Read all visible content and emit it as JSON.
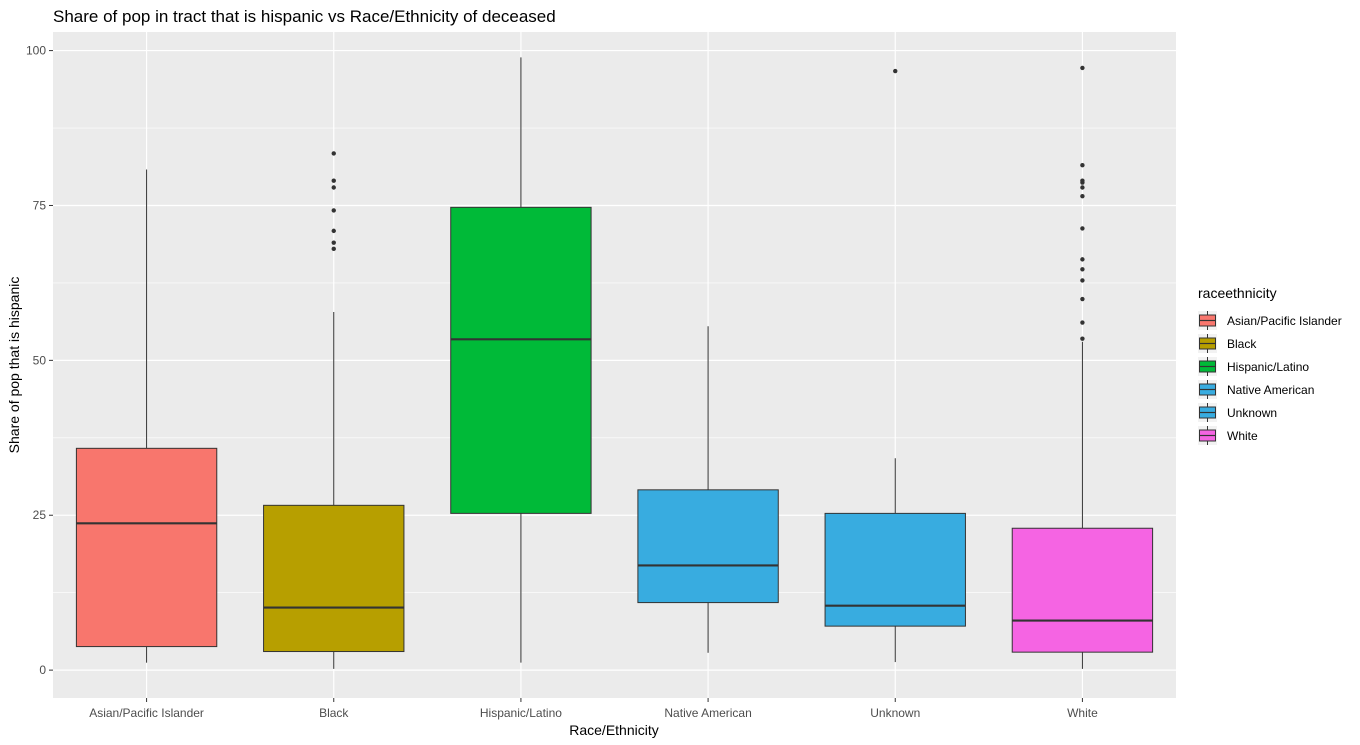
{
  "chart_data": {
    "type": "box",
    "title": "Share of pop in tract that is hispanic vs Race/Ethnicity of deceased",
    "xlabel": "Race/Ethnicity",
    "ylabel": "Share of pop that is hispanic",
    "ylim": [
      -4.5,
      103
    ],
    "yticks": [
      0,
      25,
      50,
      75,
      100
    ],
    "grid": true,
    "legend": {
      "title": "raceethnicity",
      "placement": "right"
    },
    "categories": [
      "Asian/Pacific Islander",
      "Black",
      "Hispanic/Latino",
      "Native American",
      "Unknown",
      "White"
    ],
    "series": [
      {
        "name": "Asian/Pacific Islander",
        "color": "#F8766D",
        "min": 1.2,
        "q1": 3.8,
        "median": 23.7,
        "q3": 35.8,
        "max": 80.8,
        "outliers": []
      },
      {
        "name": "Black",
        "color": "#B79F00",
        "min": 0.2,
        "q1": 3.0,
        "median": 10.1,
        "q3": 26.6,
        "max": 57.8,
        "outliers": [
          68.0,
          69.0,
          70.9,
          74.2,
          77.9,
          79.0,
          83.4
        ]
      },
      {
        "name": "Hispanic/Latino",
        "color": "#00BA38",
        "min": 1.2,
        "q1": 25.3,
        "median": 53.4,
        "q3": 74.7,
        "max": 98.9,
        "outliers": []
      },
      {
        "name": "Native American",
        "color": "#38ACE0",
        "min": 2.8,
        "q1": 10.9,
        "median": 16.9,
        "q3": 29.1,
        "max": 55.5,
        "outliers": []
      },
      {
        "name": "Unknown",
        "color": "#38ACE0",
        "min": 1.3,
        "q1": 7.1,
        "median": 10.4,
        "q3": 25.3,
        "max": 34.2,
        "outliers": [
          96.7
        ]
      },
      {
        "name": "White",
        "color": "#F564E3",
        "min": 0.2,
        "q1": 2.9,
        "median": 8.0,
        "q3": 22.9,
        "max": 53.0,
        "outliers": [
          53.5,
          56.1,
          59.9,
          62.9,
          64.7,
          66.3,
          71.3,
          76.5,
          77.9,
          78.7,
          79.0,
          81.5,
          97.2
        ]
      }
    ]
  }
}
